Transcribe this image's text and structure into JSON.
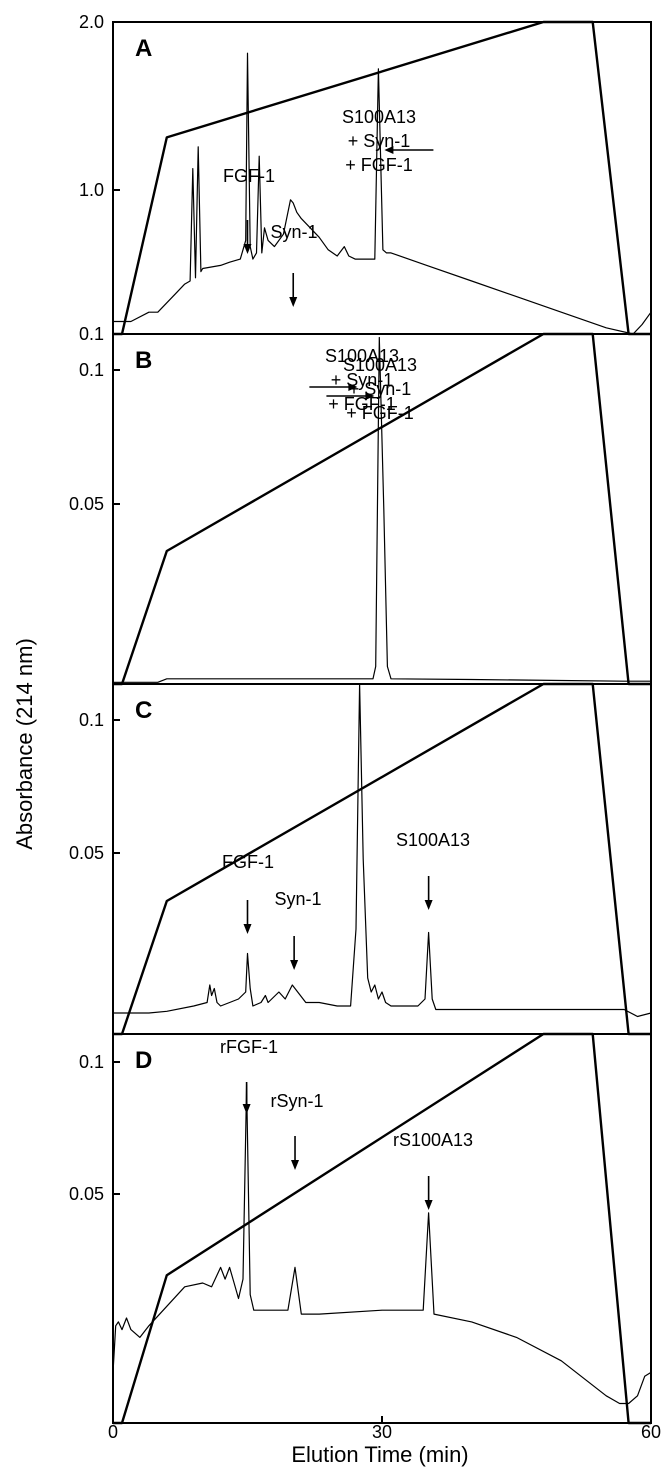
{
  "chart_data": {
    "type": "line",
    "ylabel": "Absorbance (214 nm)",
    "xlabel": "Elution Time (min)",
    "xlim": [
      0,
      60
    ],
    "x_ticks": [
      "0",
      "30",
      "60"
    ],
    "panels": [
      {
        "label": "A",
        "y_ticks": [
          "0.1",
          "1.0",
          "2.0"
        ],
        "annotations": [
          {
            "lines": [
              "FGF-1"
            ],
            "x": 15.0
          },
          {
            "lines": [
              "Syn-1"
            ],
            "x": 20.1
          },
          {
            "lines": [
              "S100A13",
              "+ Syn-1",
              "+ FGF-1"
            ],
            "x": 29.6
          }
        ],
        "gradient": {
          "x": [
            0,
            1,
            6,
            48,
            53.5,
            57.5,
            60
          ],
          "y": [
            0,
            0,
            0.63,
            1,
            1,
            0,
            0
          ]
        },
        "trace": {
          "x": [
            0,
            2,
            4,
            5,
            6,
            7,
            8,
            8.6,
            8.9,
            9.2,
            9.5,
            9.8,
            10,
            12,
            13,
            14.2,
            14.8,
            15,
            15.3,
            15.6,
            16,
            16.3,
            16.6,
            16.9,
            17.3,
            18,
            19,
            19.8,
            20.1,
            20.5,
            21,
            22,
            23,
            24,
            25,
            25.8,
            26.3,
            27,
            29.2,
            29.6,
            30.1,
            30.5,
            31,
            35,
            40,
            45,
            50,
            55,
            58,
            59,
            60
          ],
          "y": [
            0.04,
            0.04,
            0.07,
            0.07,
            0.1,
            0.13,
            0.16,
            0.17,
            0.53,
            0.18,
            0.6,
            0.2,
            0.21,
            0.22,
            0.23,
            0.24,
            0.3,
            0.9,
            0.28,
            0.24,
            0.26,
            0.57,
            0.26,
            0.34,
            0.3,
            0.28,
            0.32,
            0.43,
            0.42,
            0.39,
            0.37,
            0.34,
            0.31,
            0.27,
            0.25,
            0.28,
            0.25,
            0.24,
            0.24,
            0.85,
            0.27,
            0.26,
            0.26,
            0.22,
            0.17,
            0.12,
            0.07,
            0.02,
            0.0,
            0.03,
            0.07
          ]
        }
      },
      {
        "label": "B",
        "y_ticks": [
          "0.1",
          "0.05"
        ],
        "annotations": [
          {
            "lines": [
              "S100A13",
              "+ Syn-1",
              "+ FGF-1"
            ],
            "x": 29.6
          }
        ],
        "gradient": {
          "x": [
            0,
            1,
            6,
            48,
            53.5,
            57.5,
            60
          ],
          "y": [
            0,
            0,
            0.38,
            1,
            1,
            0,
            0
          ]
        },
        "trace": {
          "x": [
            0,
            5,
            6,
            29,
            29.3,
            29.7,
            30.2,
            30.6,
            31,
            40,
            50,
            57,
            60
          ],
          "y": [
            0.005,
            0.005,
            0.015,
            0.015,
            0.05,
            0.99,
            0.5,
            0.05,
            0.015,
            0.013,
            0.01,
            0.008,
            0.008
          ]
        }
      },
      {
        "label": "C",
        "y_ticks": [
          "0.1",
          "0.05"
        ],
        "annotations": [
          {
            "lines": [
              "S100A13",
              "+ Syn-1",
              "+ FGF-1"
            ],
            "x": 27.7
          },
          {
            "lines": [
              "FGF-1"
            ],
            "x": 15.0
          },
          {
            "lines": [
              "Syn-1"
            ],
            "x": 20.2
          },
          {
            "lines": [
              "S100A13"
            ],
            "x": 35.2
          }
        ],
        "gradient": {
          "x": [
            0,
            1,
            6,
            48,
            53.5,
            57.5,
            60
          ],
          "y": [
            0,
            0,
            0.38,
            1,
            1,
            0,
            0
          ]
        },
        "trace": {
          "x": [
            0,
            4,
            6,
            9,
            10.5,
            10.8,
            11,
            11.3,
            11.6,
            12,
            13,
            14,
            14.8,
            15,
            15.3,
            15.6,
            16.5,
            17,
            17.3,
            18.5,
            19.2,
            20,
            20.6,
            21.5,
            23,
            25,
            26.5,
            27.1,
            27.5,
            27.9,
            28.4,
            28.8,
            29.2,
            29.6,
            30,
            30.4,
            31,
            34,
            34.8,
            35.2,
            35.6,
            36,
            40,
            50,
            57,
            58.5,
            60
          ],
          "y": [
            0.06,
            0.06,
            0.065,
            0.08,
            0.09,
            0.14,
            0.11,
            0.13,
            0.09,
            0.08,
            0.09,
            0.1,
            0.12,
            0.23,
            0.13,
            0.08,
            0.09,
            0.11,
            0.09,
            0.12,
            0.1,
            0.14,
            0.12,
            0.09,
            0.09,
            0.08,
            0.08,
            0.3,
            1.0,
            0.5,
            0.16,
            0.12,
            0.14,
            0.1,
            0.12,
            0.09,
            0.08,
            0.08,
            0.1,
            0.29,
            0.1,
            0.07,
            0.07,
            0.07,
            0.07,
            0.05,
            0.06
          ]
        }
      },
      {
        "label": "D",
        "y_ticks": [
          "0.1",
          "0.05"
        ],
        "annotations": [
          {
            "lines": [
              "rFGF-1"
            ],
            "x": 14.9
          },
          {
            "lines": [
              "rSyn-1"
            ],
            "x": 20.3
          },
          {
            "lines": [
              "rS100A13"
            ],
            "x": 35.2
          }
        ],
        "gradient": {
          "x": [
            0,
            1,
            6,
            48,
            53.5,
            57.5,
            60
          ],
          "y": [
            0,
            0,
            0.38,
            1,
            1,
            0,
            0
          ]
        },
        "trace": {
          "x": [
            0,
            0.3,
            0.6,
            1,
            1.5,
            2,
            3,
            4,
            6,
            8,
            10,
            11,
            12,
            12.5,
            13,
            13.5,
            14,
            14.5,
            14.9,
            15.3,
            15.7,
            17,
            19.5,
            20.3,
            21,
            23,
            30,
            34.6,
            35.2,
            35.8,
            40,
            45,
            50,
            55,
            56.5,
            57.5,
            58.5,
            59.3,
            60
          ],
          "y": [
            0.13,
            0.25,
            0.26,
            0.24,
            0.27,
            0.24,
            0.22,
            0.25,
            0.3,
            0.35,
            0.36,
            0.35,
            0.4,
            0.37,
            0.4,
            0.36,
            0.32,
            0.37,
            0.87,
            0.33,
            0.29,
            0.29,
            0.29,
            0.4,
            0.28,
            0.28,
            0.29,
            0.29,
            0.54,
            0.28,
            0.26,
            0.22,
            0.16,
            0.07,
            0.05,
            0.05,
            0.07,
            0.12,
            0.13
          ]
        }
      }
    ]
  }
}
